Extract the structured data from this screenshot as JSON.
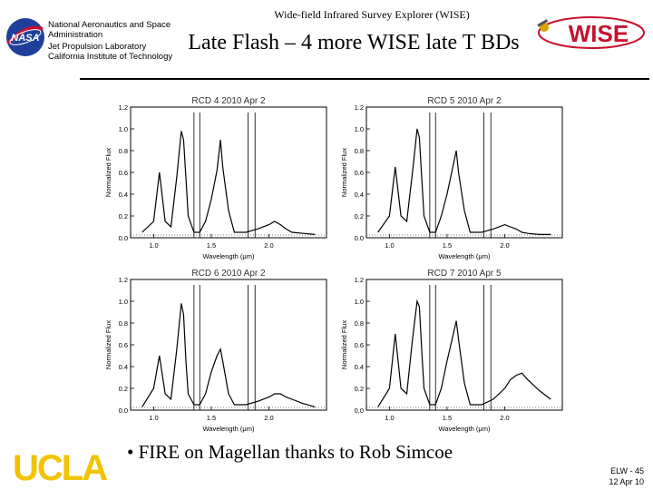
{
  "header": {
    "top_title": "Wide-field Infrared Survey Explorer (WISE)",
    "slide_title": "Late Flash – 4 more WISE late T BDs",
    "institution_lines": [
      "National Aeronautics and Space",
      "Administration",
      "Jet Propulsion Laboratory",
      "California Institute of Technology"
    ],
    "wise_logo_text": "WISE"
  },
  "bullet": "• FIRE on Magellan thanks to Rob Simcoe",
  "footer": {
    "id": "ELW - 45",
    "date": "12 Apr 10",
    "ucla_part1": "UC",
    "ucla_part2": "LA"
  },
  "colors": {
    "ucla_blue": "#2d68c4",
    "ucla_gold": "#f2c300",
    "wise_red": "#c8102e",
    "nasa_blue": "#1f3f9b"
  },
  "chart_data": [
    {
      "type": "line",
      "title": "RCD 4 2010 Apr 2",
      "xlabel": "Wavelength (μm)",
      "ylabel": "Normalized Flux",
      "xlim": [
        0.8,
        2.5
      ],
      "ylim": [
        0,
        1.2
      ],
      "xticks": [
        "1.0",
        "1.5",
        "2.0"
      ],
      "yticks": [
        "0.0",
        "0.2",
        "0.4",
        "0.6",
        "0.8",
        "1.0",
        "1.2"
      ],
      "series": [
        {
          "name": "spectrum",
          "x": [
            0.9,
            1.0,
            1.05,
            1.1,
            1.15,
            1.2,
            1.24,
            1.26,
            1.28,
            1.3,
            1.35,
            1.4,
            1.45,
            1.5,
            1.55,
            1.58,
            1.6,
            1.65,
            1.7,
            1.8,
            1.9,
            2.0,
            2.05,
            2.1,
            2.15,
            2.2,
            2.3,
            2.4
          ],
          "y": [
            0.05,
            0.15,
            0.6,
            0.15,
            0.1,
            0.55,
            0.98,
            0.9,
            0.55,
            0.2,
            0.05,
            0.05,
            0.15,
            0.35,
            0.62,
            0.9,
            0.65,
            0.25,
            0.05,
            0.05,
            0.08,
            0.12,
            0.15,
            0.12,
            0.08,
            0.05,
            0.04,
            0.03
          ]
        }
      ]
    },
    {
      "type": "line",
      "title": "RCD 5 2010 Apr 2",
      "xlabel": "Wavelength (μm)",
      "ylabel": "Normalized Flux",
      "xlim": [
        0.8,
        2.5
      ],
      "ylim": [
        0,
        1.2
      ],
      "xticks": [
        "1.0",
        "1.5",
        "2.0"
      ],
      "yticks": [
        "0.0",
        "0.2",
        "0.4",
        "0.6",
        "0.8",
        "1.0",
        "1.2"
      ],
      "series": [
        {
          "name": "spectrum",
          "x": [
            0.9,
            1.0,
            1.05,
            1.1,
            1.15,
            1.2,
            1.24,
            1.26,
            1.28,
            1.3,
            1.35,
            1.4,
            1.45,
            1.5,
            1.55,
            1.58,
            1.6,
            1.65,
            1.7,
            1.8,
            1.9,
            2.0,
            2.05,
            2.1,
            2.15,
            2.2,
            2.3,
            2.4
          ],
          "y": [
            0.05,
            0.2,
            0.65,
            0.2,
            0.15,
            0.6,
            1.0,
            0.92,
            0.55,
            0.2,
            0.05,
            0.05,
            0.2,
            0.4,
            0.65,
            0.8,
            0.6,
            0.25,
            0.05,
            0.05,
            0.08,
            0.12,
            0.1,
            0.08,
            0.05,
            0.04,
            0.03,
            0.03
          ]
        }
      ]
    },
    {
      "type": "line",
      "title": "RCD 6 2010 Apr 2",
      "xlabel": "Wavelength (μm)",
      "ylabel": "Normalized Flux",
      "xlim": [
        0.8,
        2.5
      ],
      "ylim": [
        0,
        1.2
      ],
      "xticks": [
        "1.0",
        "1.5",
        "2.0"
      ],
      "yticks": [
        "0.0",
        "0.2",
        "0.4",
        "0.6",
        "0.8",
        "1.0",
        "1.2"
      ],
      "series": [
        {
          "name": "spectrum",
          "x": [
            0.9,
            1.0,
            1.05,
            1.1,
            1.15,
            1.2,
            1.24,
            1.26,
            1.28,
            1.3,
            1.35,
            1.4,
            1.45,
            1.5,
            1.55,
            1.58,
            1.6,
            1.65,
            1.7,
            1.8,
            1.9,
            2.0,
            2.05,
            2.1,
            2.15,
            2.2,
            2.3,
            2.4
          ],
          "y": [
            0.03,
            0.2,
            0.5,
            0.15,
            0.1,
            0.55,
            0.98,
            0.88,
            0.45,
            0.15,
            0.05,
            0.05,
            0.15,
            0.35,
            0.5,
            0.56,
            0.45,
            0.15,
            0.05,
            0.05,
            0.08,
            0.12,
            0.15,
            0.15,
            0.12,
            0.1,
            0.06,
            0.03
          ]
        }
      ]
    },
    {
      "type": "line",
      "title": "RCD 7 2010 Apr 5",
      "xlabel": "Wavelength (μm)",
      "ylabel": "Normalized Flux",
      "xlim": [
        0.8,
        2.5
      ],
      "ylim": [
        0,
        1.2
      ],
      "xticks": [
        "1.0",
        "1.5",
        "2.0"
      ],
      "yticks": [
        "0.0",
        "0.2",
        "0.4",
        "0.6",
        "0.8",
        "1.0",
        "1.2"
      ],
      "series": [
        {
          "name": "spectrum",
          "x": [
            0.9,
            1.0,
            1.05,
            1.1,
            1.15,
            1.2,
            1.24,
            1.26,
            1.28,
            1.3,
            1.35,
            1.4,
            1.45,
            1.5,
            1.55,
            1.58,
            1.6,
            1.65,
            1.7,
            1.8,
            1.9,
            2.0,
            2.05,
            2.1,
            2.15,
            2.2,
            2.3,
            2.4
          ],
          "y": [
            0.03,
            0.2,
            0.7,
            0.2,
            0.15,
            0.65,
            1.0,
            0.95,
            0.55,
            0.2,
            0.05,
            0.05,
            0.2,
            0.45,
            0.68,
            0.82,
            0.65,
            0.25,
            0.05,
            0.05,
            0.1,
            0.2,
            0.28,
            0.32,
            0.34,
            0.28,
            0.18,
            0.1
          ]
        }
      ]
    }
  ]
}
